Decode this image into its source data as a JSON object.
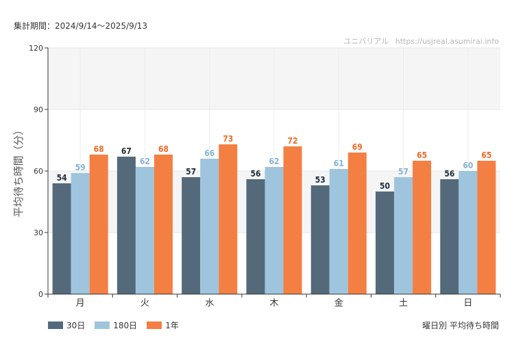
{
  "header": {
    "period": "集計期間：2024/9/14〜2025/9/13",
    "credit_site": "ユニバリアル",
    "credit_url": "https://usjreal.asumirai.info"
  },
  "footer": {
    "title": "曜日別 平均待ち時間"
  },
  "chart_data": {
    "type": "bar",
    "ylabel": "平均待ち時間（分）",
    "xlabel": "",
    "ylim": [
      0,
      120
    ],
    "yticks": [
      0,
      30,
      60,
      90,
      120
    ],
    "grid": true,
    "legend": "bottom-left",
    "categories": [
      "月",
      "火",
      "水",
      "木",
      "金",
      "土",
      "日"
    ],
    "series": [
      {
        "name": "30日",
        "color": "#546a7b",
        "label_color": "#1f2d3d",
        "values": [
          54,
          67,
          57,
          56,
          53,
          50,
          56
        ]
      },
      {
        "name": "180日",
        "color": "#9ec5dd",
        "label_color": "#86b4d3",
        "values": [
          59,
          62,
          66,
          62,
          61,
          57,
          60
        ]
      },
      {
        "name": "1年",
        "color": "#f47f43",
        "label_color": "#f06a26",
        "values": [
          68,
          68,
          73,
          72,
          69,
          65,
          65
        ]
      }
    ]
  }
}
